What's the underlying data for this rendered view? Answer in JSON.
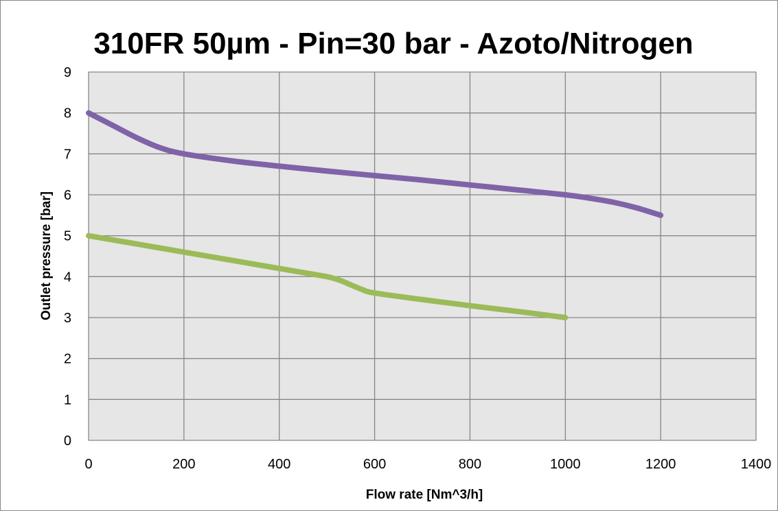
{
  "chart_data": {
    "type": "line",
    "title": "310FR 50µm - Pin=30 bar - Azoto/Nitrogen",
    "xlabel": "Flow rate [Nm^3/h]",
    "ylabel": "Outlet pressure [bar]",
    "xlim": [
      0,
      1400
    ],
    "ylim": [
      0,
      9
    ],
    "x_ticks": [
      "0",
      "200",
      "400",
      "600",
      "800",
      "1000",
      "1200",
      "1400"
    ],
    "y_ticks": [
      "0",
      "1",
      "2",
      "3",
      "4",
      "5",
      "6",
      "7",
      "8",
      "9"
    ],
    "grid": true,
    "plot_background": "#e6e6e6",
    "grid_color": "#868686",
    "series": [
      {
        "color": "#7f63a8",
        "x": [
          0,
          50,
          100,
          150,
          200,
          300,
          400,
          500,
          600,
          700,
          800,
          900,
          1000,
          1050,
          1100,
          1150,
          1200
        ],
        "y": [
          8.0,
          7.7,
          7.4,
          7.15,
          7.0,
          6.83,
          6.7,
          6.58,
          6.47,
          6.36,
          6.24,
          6.12,
          6.0,
          5.92,
          5.82,
          5.68,
          5.5
        ]
      },
      {
        "color": "#9bbb59",
        "x": [
          0,
          100,
          200,
          300,
          400,
          450,
          500,
          525,
          550,
          575,
          600,
          700,
          800,
          900,
          1000
        ],
        "y": [
          5.0,
          4.8,
          4.6,
          4.4,
          4.2,
          4.1,
          4.0,
          3.92,
          3.8,
          3.68,
          3.6,
          3.44,
          3.29,
          3.15,
          3.0
        ]
      }
    ]
  }
}
